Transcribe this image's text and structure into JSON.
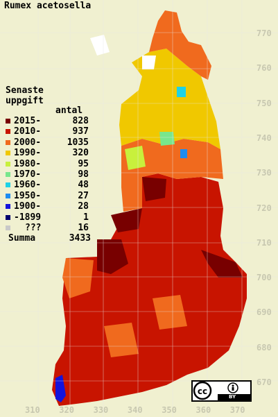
{
  "title": "Rumex acetosella",
  "legend": {
    "heading_1": "Senaste",
    "heading_2": "uppgift",
    "count_header": "antal",
    "items": [
      {
        "label": "2015-",
        "count": "828",
        "color": "#780000"
      },
      {
        "label": "2010-",
        "count": "937",
        "color": "#c81400"
      },
      {
        "label": "2000-",
        "count": "1035",
        "color": "#f06a1e"
      },
      {
        "label": "1990-",
        "count": "320",
        "color": "#f0c800"
      },
      {
        "label": "1980-",
        "count": "95",
        "color": "#c8f03c"
      },
      {
        "label": "1970-",
        "count": "98",
        "color": "#78e68c"
      },
      {
        "label": "1960-",
        "count": "48",
        "color": "#1ed2e6"
      },
      {
        "label": "1950-",
        "count": "27",
        "color": "#1e8cf0"
      },
      {
        "label": "1900-",
        "count": "28",
        "color": "#1414dc"
      },
      {
        "label": "-1899",
        "count": "1",
        "color": "#00006e"
      },
      {
        "label": "???",
        "count": "16",
        "color": "#c8c8c8"
      }
    ],
    "total_label": "Summa",
    "total_count": "3433"
  },
  "axes": {
    "y_ticks": [
      "770",
      "760",
      "750",
      "740",
      "730",
      "720",
      "710",
      "700",
      "690",
      "680",
      "670"
    ],
    "x_ticks": [
      "310",
      "320",
      "330",
      "340",
      "350",
      "360",
      "370"
    ]
  },
  "license": {
    "cc_icon": "cc-icon",
    "by_icon": "by-person-icon",
    "by_label": "BY"
  }
}
